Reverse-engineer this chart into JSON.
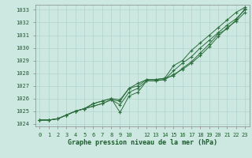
{
  "title": "Graphe pression niveau de la mer (hPa)",
  "background_color": "#cce8e0",
  "grid_color": "#b0d4cc",
  "line_color": "#2d6e3e",
  "xlim": [
    -0.5,
    23.5
  ],
  "ylim": [
    1023.8,
    1033.4
  ],
  "yticks": [
    1024,
    1025,
    1026,
    1027,
    1028,
    1029,
    1030,
    1031,
    1032,
    1033
  ],
  "xtick_labels": [
    "0",
    "1",
    "2",
    "3",
    "4",
    "5",
    "6",
    "7",
    "8",
    "9",
    "10",
    "",
    "12",
    "13",
    "14",
    "15",
    "16",
    "17",
    "18",
    "19",
    "20",
    "21",
    "22",
    "23"
  ],
  "series": [
    [
      1024.3,
      1024.3,
      1024.4,
      1024.7,
      1025.0,
      1025.2,
      1025.4,
      1025.6,
      1025.9,
      1025.8,
      1026.8,
      1027.0,
      1027.5,
      1027.5,
      1027.6,
      1027.8,
      1028.4,
      1028.9,
      1029.6,
      1030.3,
      1031.1,
      1031.5,
      1032.2,
      1033.1
    ],
    [
      1024.3,
      1024.3,
      1024.4,
      1024.7,
      1025.0,
      1025.2,
      1025.4,
      1025.6,
      1025.9,
      1025.5,
      1026.5,
      1026.8,
      1027.4,
      1027.4,
      1027.5,
      1028.2,
      1028.8,
      1029.3,
      1030.0,
      1030.6,
      1031.2,
      1031.8,
      1032.3,
      1033.0
    ],
    [
      1024.3,
      1024.3,
      1024.4,
      1024.7,
      1025.0,
      1025.2,
      1025.6,
      1025.8,
      1026.0,
      1024.9,
      1026.2,
      1026.5,
      1027.4,
      1027.4,
      1027.5,
      1027.9,
      1028.3,
      1028.8,
      1029.4,
      1030.1,
      1030.9,
      1031.6,
      1032.1,
      1032.8
    ],
    [
      1024.3,
      1024.3,
      1024.4,
      1024.7,
      1025.0,
      1025.2,
      1025.6,
      1025.8,
      1026.0,
      1025.9,
      1026.8,
      1027.2,
      1027.5,
      1027.5,
      1027.6,
      1028.6,
      1029.0,
      1029.8,
      1030.4,
      1031.0,
      1031.6,
      1032.2,
      1032.8,
      1033.2
    ]
  ]
}
